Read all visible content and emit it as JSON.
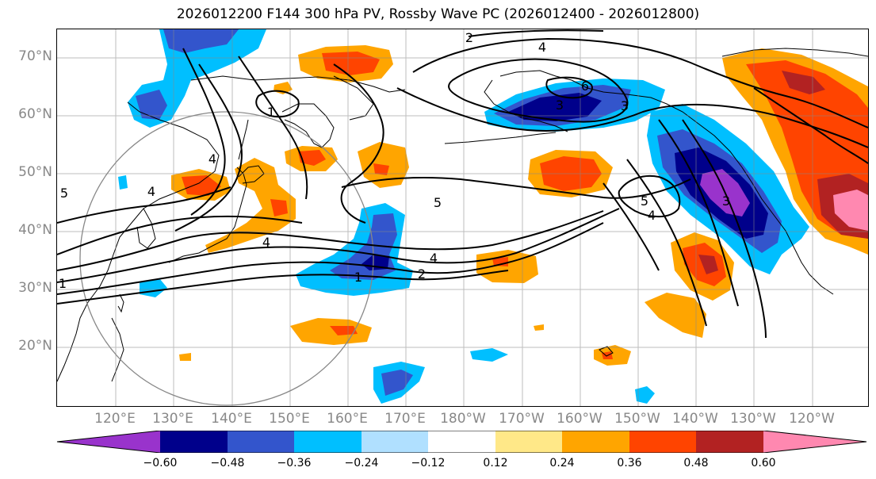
{
  "title": "2026012200 F144 300 hPa PV, Rossby Wave PC (2026012400 - 2026012800)",
  "lat_axis": [
    "70°N",
    "60°N",
    "50°N",
    "40°N",
    "30°N",
    "20°N"
  ],
  "lon_axis": [
    "120°E",
    "130°E",
    "140°E",
    "150°E",
    "160°E",
    "170°E",
    "180°W",
    "170°W",
    "160°W",
    "150°W",
    "140°W",
    "130°W",
    "120°W"
  ],
  "contour_labels": [
    "2",
    "4",
    "6",
    "3",
    "1",
    "4",
    "5",
    "5",
    "4",
    "1",
    "4",
    "2",
    "4",
    "4",
    "1",
    "3",
    "5",
    "3"
  ],
  "colorbar": {
    "ticks": [
      "−0.60",
      "−0.48",
      "−0.36",
      "−0.24",
      "−0.12",
      "0.12",
      "0.24",
      "0.36",
      "0.48",
      "0.60"
    ],
    "colors": [
      "#9933cc",
      "#00008b",
      "#3355cc",
      "#00bfff",
      "#b0e0ff",
      "#ffffff",
      "#ffe888",
      "#ffa500",
      "#ff4400",
      "#b22222",
      "#ff88b0"
    ]
  },
  "palette": {
    "neg_strong": "#9933cc",
    "neg_navy": "#00008b",
    "neg_blue": "#3355cc",
    "neg_sky": "#00bfff",
    "pos_orange": "#ffa500",
    "pos_red": "#ff4400",
    "pos_darkred": "#b22222",
    "pos_pink": "#ff88b0"
  }
}
